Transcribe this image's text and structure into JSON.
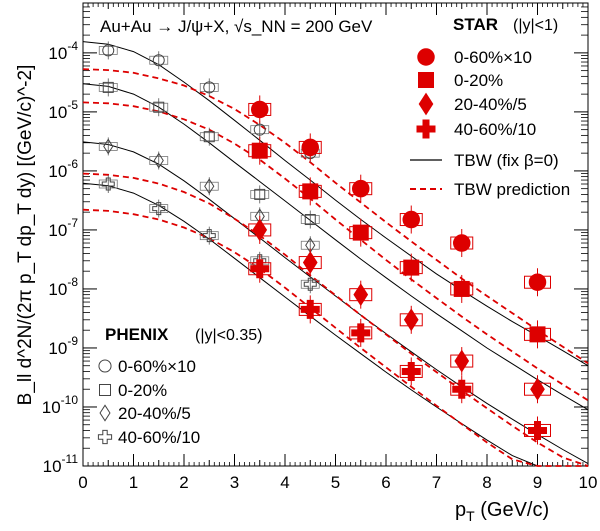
{
  "chart_data": {
    "type": "scatter",
    "y_scale": "log",
    "x_range": [
      0,
      10
    ],
    "y_range": [
      1e-11,
      0.0007
    ],
    "xlabel": {
      "main": "p",
      "sub": "T",
      "rest": " (GeV/c)"
    },
    "ylabel": "B_ll d^2N/(2π p_T dp_T dy) [(GeV/c)^-2]",
    "x_ticks": [
      "0",
      "0.5",
      "1",
      "1.5",
      "2",
      "2.5",
      "3",
      "3.5",
      "4",
      "4.5",
      "5",
      "5.5",
      "6",
      "6.5",
      "7",
      "7.5",
      "8",
      "8.5",
      "9",
      "9.5",
      "10"
    ],
    "y_ticks": [
      {
        "base": "10",
        "exp": "-11",
        "value": 1e-11
      },
      {
        "base": "10",
        "exp": "-10",
        "value": 1e-10
      },
      {
        "base": "10",
        "exp": "-9",
        "value": 1e-09
      },
      {
        "base": "10",
        "exp": "-8",
        "value": 1e-08
      },
      {
        "base": "10",
        "exp": "-7",
        "value": 1e-07
      },
      {
        "base": "10",
        "exp": "-6",
        "value": 1e-06
      },
      {
        "base": "10",
        "exp": "-5",
        "value": 1e-05
      },
      {
        "base": "10",
        "exp": "-4",
        "value": 0.0001
      }
    ],
    "annotation": "Au+Au → J/ψ+X, √s_NN = 200 GeV",
    "legend_star": {
      "title": "STAR",
      "subtitle": "(|y|<1)",
      "items": [
        "0-60%×10",
        "0-20%",
        "20-40%/5",
        "40-60%/10"
      ],
      "markers": [
        "circle",
        "square",
        "diamond",
        "cross"
      ],
      "color": "#dd0000",
      "placement": "top-right"
    },
    "legend_models": {
      "items": [
        "TBW (fix β=0)",
        "TBW prediction"
      ]
    },
    "legend_phenix": {
      "title": "PHENIX",
      "subtitle": "(|y|<0.35)",
      "items": [
        "0-60%×10",
        "0-20%",
        "20-40%/5",
        "40-60%/10"
      ],
      "markers": [
        "circle",
        "square",
        "diamond",
        "cross"
      ],
      "placement": "bottom-left"
    },
    "star_series": [
      {
        "name": "0-60%×10",
        "marker": "circle",
        "x": [
          3.5,
          4.5,
          5.5,
          6.5,
          7.5,
          9
        ],
        "y": [
          1.1e-05,
          2.5e-06,
          5e-07,
          1.5e-07,
          6e-08,
          1.3e-08
        ]
      },
      {
        "name": "0-20%",
        "marker": "square",
        "x": [
          3.5,
          4.5,
          5.5,
          6.5,
          7.5,
          9
        ],
        "y": [
          2.2e-06,
          4.5e-07,
          9e-08,
          2.3e-08,
          1e-08,
          1.7e-09
        ]
      },
      {
        "name": "20-40%/5",
        "marker": "diamond",
        "x": [
          3.5,
          4.5,
          5.5,
          6.5,
          7.5,
          9
        ],
        "y": [
          1e-07,
          2.8e-08,
          8e-09,
          3e-09,
          6e-10,
          2e-10
        ]
      },
      {
        "name": "40-60%/10",
        "marker": "cross",
        "x": [
          3.5,
          4.5,
          5.5,
          6.5,
          7.5,
          9
        ],
        "y": [
          2.2e-08,
          4.5e-09,
          1.8e-09,
          4e-10,
          2e-10,
          4e-11
        ]
      }
    ],
    "phenix_series": [
      {
        "name": "0-60%×10",
        "marker": "circle",
        "x": [
          0.5,
          1.5,
          2.5,
          3.5,
          4.5
        ],
        "y": [
          0.00011,
          7.5e-05,
          2.6e-05,
          5e-06,
          2e-06
        ]
      },
      {
        "name": "0-20%",
        "marker": "square",
        "x": [
          0.5,
          1.5,
          2.5,
          3.5,
          4.5
        ],
        "y": [
          2.6e-05,
          1.2e-05,
          3.8e-06,
          4e-07,
          1.5e-07
        ]
      },
      {
        "name": "20-40%/5",
        "marker": "diamond",
        "x": [
          0.5,
          1.5,
          2.5,
          3.5,
          4.5
        ],
        "y": [
          2.6e-06,
          1.5e-06,
          5.5e-07,
          1.7e-07,
          5.5e-08
        ]
      },
      {
        "name": "40-60%/10",
        "marker": "cross",
        "x": [
          0.5,
          1.5,
          2.5,
          3.5,
          4.5
        ],
        "y": [
          6e-07,
          2.3e-07,
          8e-08,
          3e-08,
          1.2e-08
        ]
      }
    ],
    "model_curves": [
      {
        "name": "TBW (fix β=0)",
        "style": "solid",
        "x": [
          0,
          0.5,
          1,
          1.5,
          2,
          2.5,
          3,
          3.5,
          4,
          4.5,
          5,
          5.5,
          6,
          6.5,
          7,
          7.5,
          8,
          8.5,
          9,
          9.5,
          10
        ],
        "y": [
          0.000155,
          0.00014,
          0.000105,
          6.3e-05,
          3.2e-05,
          1.55e-05,
          7.2e-06,
          3.3e-06,
          1.5e-06,
          7e-07,
          3.2e-07,
          1.5e-07,
          7.3e-08,
          3.6e-08,
          1.8e-08,
          9.5e-09,
          5.1e-09,
          2.8e-09,
          1.6e-09,
          9e-10,
          5e-10
        ]
      },
      {
        "name": "TBW prediction",
        "style": "dashed",
        "x": [
          0,
          0.5,
          1,
          1.5,
          2,
          2.5,
          3,
          3.5,
          4,
          4.5,
          5,
          5.5,
          6,
          6.5,
          7,
          7.5,
          8,
          8.5,
          9,
          9.5,
          10
        ],
        "y": [
          5.3e-05,
          5.1e-05,
          4.6e-05,
          3.7e-05,
          2.8e-05,
          1.85e-05,
          1.12e-05,
          6e-06,
          3e-06,
          1.4e-06,
          6.3e-07,
          2.9e-07,
          1.35e-07,
          6.4e-08,
          3.1e-08,
          1.5e-08,
          7.6e-09,
          3.9e-09,
          2e-09,
          1.05e-09,
          5.5e-10
        ]
      },
      {
        "name": "TBW (fix β=0)",
        "style": "solid",
        "x": [
          0,
          0.5,
          1,
          1.5,
          2,
          2.5,
          3,
          3.5,
          4,
          4.5,
          5,
          5.5,
          6,
          6.5,
          7,
          7.5,
          8,
          8.5,
          9,
          9.5,
          10
        ],
        "y": [
          3e-05,
          2.7e-05,
          2e-05,
          1.2e-05,
          6.2e-06,
          3e-06,
          1.4e-06,
          6.6e-07,
          3.1e-07,
          1.45e-07,
          6.8e-08,
          3.2e-08,
          1.55e-08,
          7.6e-09,
          3.8e-09,
          1.95e-09,
          1e-09,
          5.4e-10,
          2.9e-10,
          1.6e-10,
          9e-11
        ]
      },
      {
        "name": "TBW prediction",
        "style": "dashed",
        "x": [
          0,
          0.5,
          1,
          1.5,
          2,
          2.5,
          3,
          3.5,
          4,
          4.5,
          5,
          5.5,
          6,
          6.5,
          7,
          7.5,
          8,
          8.5,
          9,
          9.5,
          10
        ],
        "y": [
          1.45e-05,
          1.4e-05,
          1.25e-05,
          1.02e-05,
          7.5e-06,
          5e-06,
          2.9e-06,
          1.55e-06,
          7.4e-07,
          3.4e-07,
          1.5e-07,
          6.8e-08,
          3.1e-08,
          1.45e-08,
          7e-09,
          3.4e-09,
          1.7e-09,
          8.7e-10,
          4.5e-10,
          2.4e-10,
          1.3e-10
        ]
      },
      {
        "name": "TBW (fix β=0)",
        "style": "solid",
        "x": [
          0,
          0.5,
          1,
          1.5,
          2,
          2.5,
          3,
          3.5,
          4,
          4.5,
          5,
          5.5,
          6,
          6.5,
          7,
          7.5,
          8,
          8.5,
          9,
          9.5,
          10
        ],
        "y": [
          3.1e-06,
          2.8e-06,
          2.1e-06,
          1.3e-06,
          6.8e-07,
          3.3e-07,
          1.55e-07,
          7.3e-08,
          3.4e-08,
          1.6e-08,
          7.6e-09,
          3.6e-09,
          1.75e-09,
          8.6e-10,
          4.3e-10,
          2.2e-10,
          1.15e-10,
          6.2e-11,
          3.4e-11,
          1.9e-11,
          1.1e-11
        ]
      },
      {
        "name": "TBW prediction",
        "style": "dashed",
        "x": [
          0,
          0.5,
          1,
          1.5,
          2,
          2.5,
          3,
          3.5,
          4,
          4.5,
          5,
          5.5,
          6,
          6.5,
          7,
          7.5,
          8,
          8.5,
          9,
          9.5,
          10
        ],
        "y": [
          9e-07,
          8.6e-07,
          7.6e-07,
          6.1e-07,
          4.4e-07,
          2.8e-07,
          1.55e-07,
          8e-08,
          3.8e-08,
          1.7e-08,
          7.8e-09,
          3.6e-09,
          1.7e-09,
          8e-10,
          3.9e-10,
          1.9e-10,
          9.5e-11,
          4.8e-11,
          2.5e-11,
          1.4e-11,
          1e-11
        ]
      },
      {
        "name": "TBW (fix β=0)",
        "style": "solid",
        "x": [
          0,
          0.5,
          1,
          1.5,
          2,
          2.5,
          3,
          3.5,
          4,
          4.5,
          5,
          5.5,
          6,
          6.5,
          7,
          7.5,
          8,
          8.5,
          9,
          9.5,
          10
        ],
        "y": [
          6.2e-07,
          5.6e-07,
          4.2e-07,
          2.6e-07,
          1.4e-07,
          7e-08,
          3.3e-08,
          1.55e-08,
          7.3e-09,
          3.45e-09,
          1.65e-09,
          8e-10,
          3.9e-10,
          1.95e-10,
          1e-10,
          5.2e-11,
          2.75e-11,
          1.5e-11,
          1e-11,
          1e-11,
          1e-11
        ]
      },
      {
        "name": "TBW prediction",
        "style": "dashed",
        "x": [
          0,
          0.5,
          1,
          1.5,
          2,
          2.5,
          3,
          3.5,
          4,
          4.5,
          5,
          5.5,
          6,
          6.5,
          7,
          7.5,
          8,
          8.5,
          9,
          9.5,
          10
        ],
        "y": [
          2.2e-07,
          2.1e-07,
          1.85e-07,
          1.5e-07,
          1.1e-07,
          7.2e-08,
          4.2e-08,
          2.2e-08,
          1.05e-08,
          4.8e-09,
          2.2e-09,
          1e-09,
          4.7e-10,
          2.2e-10,
          1.05e-10,
          5.1e-11,
          2.5e-11,
          1.3e-11,
          1e-11,
          1e-11,
          1e-11
        ]
      }
    ]
  }
}
